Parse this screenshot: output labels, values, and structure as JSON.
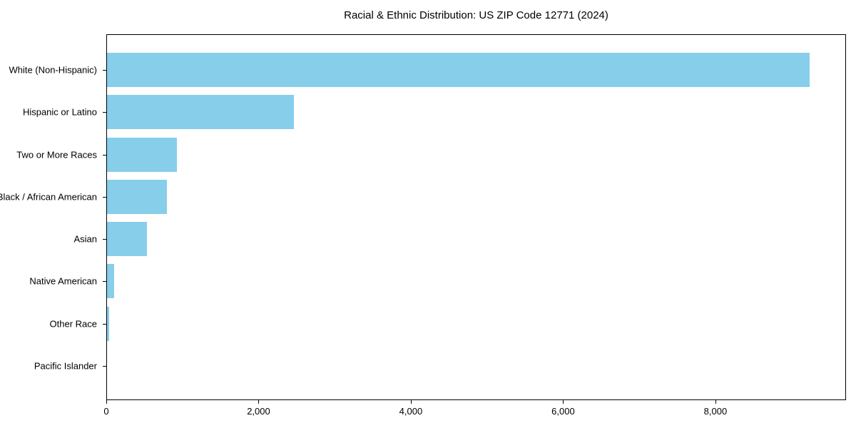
{
  "title": "Racial & Ethnic Distribution: US ZIP Code 12771 (2024)",
  "chart_data": {
    "type": "bar",
    "orientation": "horizontal",
    "title": "Racial & Ethnic Distribution: US ZIP Code 12771 (2024)",
    "categories": [
      "White (Non-Hispanic)",
      "Hispanic or Latino",
      "Two or More Races",
      "Black / African American",
      "Asian",
      "Native American",
      "Other Race",
      "Pacific Islander"
    ],
    "values": [
      9250,
      2460,
      920,
      790,
      525,
      95,
      30,
      0
    ],
    "xlabel": "",
    "ylabel": "",
    "xlim": [
      0,
      9715
    ],
    "xticks": [
      0,
      2000,
      4000,
      6000,
      8000
    ],
    "xtick_labels": [
      "0",
      "2,000",
      "4,000",
      "6,000",
      "8,000"
    ],
    "bar_color": "#87CEEB",
    "background_color": "#ffffff",
    "spine_color": "#000000",
    "grid": false,
    "legend": null
  }
}
